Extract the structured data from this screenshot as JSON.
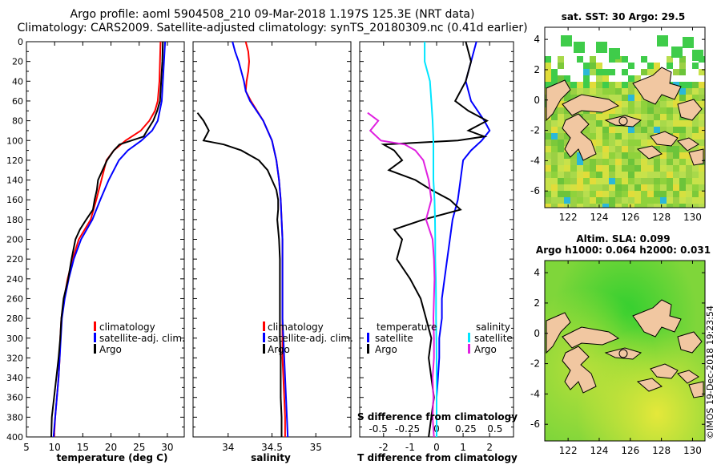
{
  "titles": {
    "line1": "Argo profile: aoml 5904508_210 09-Mar-2018 1.197S 125.3E (NRT data)",
    "line2": "Climatology: CARS2009. Satellite-adjusted climatology: synTS_20180309.nc (0.41d earlier)"
  },
  "colors": {
    "climatology": "#ff0000",
    "satellite": "#0000ff",
    "argo": "#000000",
    "salinity_sat": "#00e5ff",
    "salinity_argo": "#e020e0",
    "land": "#f1c7a1"
  },
  "chart_data": [
    {
      "type": "line",
      "id": "temperature",
      "xlabel": "temperature (deg C)",
      "xlim": [
        5,
        33
      ],
      "ylim": [
        0,
        400
      ],
      "xticks": [
        "5",
        "10",
        "15",
        "20",
        "25",
        "30"
      ],
      "xtick_values": [
        5,
        10,
        15,
        20,
        25,
        30
      ],
      "yticks": [
        "0",
        "20",
        "40",
        "60",
        "80",
        "100",
        "120",
        "140",
        "160",
        "180",
        "200",
        "220",
        "240",
        "260",
        "280",
        "300",
        "320",
        "340",
        "360",
        "380",
        "400"
      ],
      "legend": [
        "climatology",
        "satellite-adj. clim.",
        "Argo"
      ],
      "series": [
        {
          "name": "climatology",
          "color": "#ff0000",
          "depth": [
            0,
            20,
            40,
            60,
            70,
            80,
            90,
            100,
            110,
            120,
            140,
            160,
            180,
            200,
            220,
            240,
            260,
            280,
            300,
            320,
            340,
            360,
            380,
            400
          ],
          "value": [
            28.8,
            28.7,
            28.6,
            28.3,
            27.8,
            26.8,
            25.3,
            22.6,
            20.5,
            19.2,
            18.3,
            17.4,
            16.4,
            14.3,
            13.2,
            12.3,
            11.7,
            11.2,
            11.0,
            10.9,
            10.7,
            10.4,
            10.1,
            9.9
          ]
        },
        {
          "name": "satellite-adj. clim.",
          "color": "#0000ff",
          "depth": [
            0,
            20,
            40,
            60,
            80,
            90,
            100,
            110,
            120,
            140,
            160,
            180,
            200,
            220,
            240,
            260,
            280,
            300,
            320,
            340,
            360,
            380,
            400
          ],
          "value": [
            29.6,
            29.4,
            29.2,
            29.0,
            28.3,
            27.3,
            25.4,
            23.0,
            21.4,
            19.6,
            18.1,
            16.7,
            14.7,
            13.4,
            12.5,
            11.8,
            11.3,
            11.1,
            10.9,
            10.7,
            10.4,
            10.1,
            9.8
          ]
        },
        {
          "name": "Argo",
          "color": "#000000",
          "depth": [
            0,
            20,
            40,
            60,
            70,
            80,
            90,
            96,
            104,
            110,
            120,
            130,
            140,
            150,
            160,
            170,
            180,
            190,
            200,
            220,
            240,
            260,
            280,
            300,
            320,
            340,
            360,
            380,
            400
          ],
          "value": [
            29.2,
            29.1,
            28.9,
            28.7,
            28.2,
            27.5,
            26.4,
            25.8,
            21.5,
            20.5,
            19.3,
            18.5,
            17.7,
            17.5,
            17.1,
            16.8,
            15.6,
            14.5,
            13.7,
            13.0,
            12.4,
            11.6,
            11.2,
            11.0,
            10.7,
            10.3,
            9.9,
            9.5,
            9.4
          ]
        }
      ]
    },
    {
      "type": "line",
      "id": "salinity",
      "xlabel": "salinity",
      "xlim": [
        33.6,
        35.4
      ],
      "ylim": [
        0,
        400
      ],
      "xticks": [
        "34",
        "34.5",
        "35"
      ],
      "xtick_values": [
        34,
        34.5,
        35
      ],
      "legend": [
        "climatology",
        "satellite-adj. clim.",
        "Argo"
      ],
      "series": [
        {
          "name": "climatology",
          "color": "#ff0000",
          "depth": [
            0,
            10,
            20,
            30,
            40,
            50,
            60,
            80,
            100,
            120,
            140,
            160,
            180,
            200,
            220,
            240,
            260,
            280,
            300,
            320,
            340,
            360,
            380,
            400
          ],
          "value": [
            34.2,
            34.23,
            34.24,
            34.23,
            34.21,
            34.2,
            34.26,
            34.4,
            34.5,
            34.55,
            34.58,
            34.6,
            34.61,
            34.62,
            34.62,
            34.62,
            34.62,
            34.62,
            34.62,
            34.62,
            34.63,
            34.64,
            34.65,
            34.65
          ]
        },
        {
          "name": "satellite-adj. clim.",
          "color": "#0000ff",
          "depth": [
            0,
            10,
            20,
            30,
            40,
            50,
            60,
            80,
            100,
            120,
            140,
            160,
            180,
            200,
            220,
            240,
            260,
            280,
            300,
            320,
            340,
            360,
            380,
            400
          ],
          "value": [
            34.05,
            34.08,
            34.12,
            34.15,
            34.18,
            34.2,
            34.25,
            34.4,
            34.5,
            34.55,
            34.58,
            34.6,
            34.61,
            34.62,
            34.62,
            34.62,
            34.62,
            34.62,
            34.63,
            34.64,
            34.65,
            34.66,
            34.67,
            34.68
          ]
        },
        {
          "name": "Argo",
          "color": "#000000",
          "depth": [
            72,
            80,
            90,
            100,
            104,
            110,
            120,
            130,
            140,
            150,
            160,
            170,
            180,
            190,
            200,
            220,
            240,
            260,
            280,
            300,
            320,
            340,
            360,
            380,
            400
          ],
          "value": [
            33.65,
            33.72,
            33.78,
            33.72,
            33.95,
            34.15,
            34.35,
            34.45,
            34.5,
            34.55,
            34.57,
            34.57,
            34.56,
            34.57,
            34.58,
            34.59,
            34.59,
            34.59,
            34.59,
            34.59,
            34.6,
            34.6,
            34.6,
            34.61,
            34.61
          ]
        }
      ]
    },
    {
      "type": "line",
      "id": "difference",
      "xlabel": "T difference from climatology",
      "xlabel_top": "S difference from climatology",
      "xlim": [
        -2.9,
        2.9
      ],
      "ylim": [
        0,
        400
      ],
      "xticks": [
        "-2",
        "-1",
        "0",
        "1",
        "2"
      ],
      "xtick_values": [
        -2,
        -1,
        0,
        1,
        2
      ],
      "xticks_top": [
        "-0.5",
        "-0.25",
        "0",
        "0.25",
        "0.5"
      ],
      "xtick_top_values": [
        -2.2,
        -1.1,
        0,
        1.1,
        2.2
      ],
      "legend_left_title": "temperature",
      "legend_right_title": "salinity",
      "legend_left": [
        "satellite",
        "Argo"
      ],
      "legend_right": [
        "satellite",
        "Argo"
      ],
      "series": [
        {
          "name": "temperature satellite",
          "color": "#0000ff",
          "depth": [
            0,
            20,
            40,
            60,
            80,
            90,
            100,
            110,
            120,
            140,
            160,
            180,
            200,
            220,
            240,
            260,
            280,
            300,
            320,
            340,
            360,
            380,
            400
          ],
          "value": [
            1.5,
            1.3,
            1.1,
            1.3,
            1.8,
            2.0,
            1.7,
            1.3,
            1.0,
            0.9,
            0.8,
            0.6,
            0.5,
            0.4,
            0.3,
            0.2,
            0.2,
            0.1,
            0.1,
            0.05,
            0.0,
            0.0,
            0.0
          ]
        },
        {
          "name": "temperature Argo",
          "color": "#000000",
          "depth": [
            0,
            20,
            40,
            60,
            70,
            80,
            90,
            96,
            100,
            104,
            110,
            120,
            130,
            140,
            150,
            160,
            170,
            180,
            190,
            200,
            220,
            240,
            260,
            280,
            300,
            320,
            340,
            360,
            380,
            400
          ],
          "value": [
            1.1,
            1.3,
            1.1,
            0.7,
            1.2,
            1.9,
            1.2,
            1.8,
            0.8,
            -2.0,
            -1.6,
            -1.3,
            -1.8,
            -0.8,
            -0.2,
            0.5,
            0.9,
            -0.5,
            -1.6,
            -1.3,
            -1.5,
            -1.0,
            -0.6,
            -0.4,
            -0.2,
            -0.3,
            -0.2,
            -0.1,
            -0.2,
            -0.3
          ]
        },
        {
          "name": "salinity satellite",
          "color": "#00e5ff",
          "depth": [
            0,
            20,
            40,
            60,
            80,
            100,
            120,
            140,
            160,
            180,
            200,
            220,
            240,
            260,
            280,
            300,
            320,
            340,
            360,
            380,
            400
          ],
          "value": [
            -0.45,
            -0.45,
            -0.25,
            -0.2,
            -0.15,
            -0.12,
            -0.12,
            -0.12,
            -0.08,
            -0.06,
            -0.05,
            -0.05,
            -0.03,
            -0.02,
            -0.02,
            -0.01,
            0.0,
            0.0,
            0.0,
            0.0,
            0.0
          ]
        },
        {
          "name": "salinity Argo",
          "color": "#e020e0",
          "depth": [
            72,
            80,
            90,
            100,
            104,
            110,
            120,
            140,
            160,
            180,
            200,
            220,
            240,
            260,
            280,
            300,
            320,
            340,
            360,
            380,
            400
          ],
          "value": [
            -2.6,
            -2.2,
            -2.5,
            -2.1,
            -1.2,
            -0.8,
            -0.5,
            -0.3,
            -0.2,
            -0.4,
            -0.15,
            -0.1,
            -0.08,
            -0.1,
            -0.12,
            -0.1,
            -0.1,
            -0.15,
            -0.12,
            -0.15,
            -0.1
          ]
        }
      ]
    }
  ],
  "maps": {
    "sst": {
      "title": "sat. SST: 30 Argo: 29.5",
      "yticks": [
        "4",
        "2",
        "0",
        "-2",
        "-4",
        "-6"
      ],
      "xticks": [
        "122",
        "124",
        "126",
        "128",
        "130"
      ],
      "float_lon": 125.3,
      "float_lat": -1.2
    },
    "sla": {
      "title1": "Altim. SLA: 0.099",
      "title2": "Argo h1000: 0.064 h2000: 0.031",
      "yticks": [
        "4",
        "2",
        "0",
        "-2",
        "-4",
        "-6"
      ],
      "xticks": [
        "122",
        "124",
        "126",
        "128",
        "130"
      ],
      "float_lon": 125.3,
      "float_lat": -1.2
    }
  },
  "stamp": "©IMOS 19-Dec-2018 19:23:54"
}
